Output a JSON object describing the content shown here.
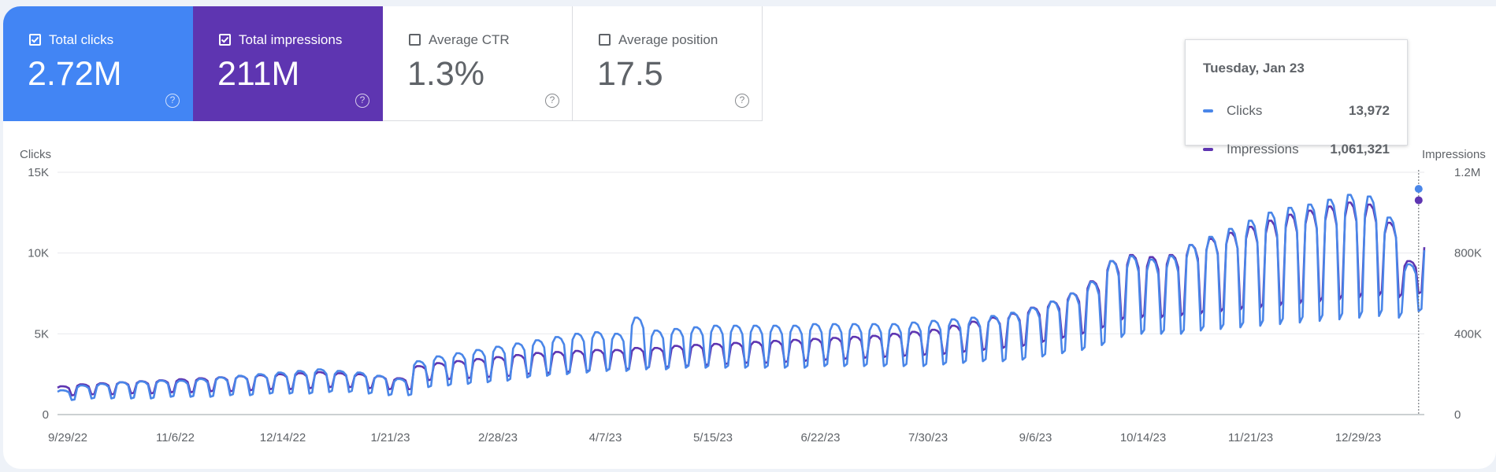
{
  "metrics": [
    {
      "label": "Total clicks",
      "value": "2.72M",
      "checked": true,
      "help": "?"
    },
    {
      "label": "Total impressions",
      "value": "211M",
      "checked": true,
      "help": "?"
    },
    {
      "label": "Average CTR",
      "value": "1.3%",
      "checked": false,
      "help": "?"
    },
    {
      "label": "Average position",
      "value": "17.5",
      "checked": false,
      "help": "?"
    }
  ],
  "colors": {
    "clicks": "#4a86e8",
    "impressions": "#5e35b1",
    "text": "#5f6368"
  },
  "tooltip": {
    "date": "Tuesday, Jan 23",
    "rows": [
      {
        "label": "Clicks",
        "value": "13,972"
      },
      {
        "label": "Impressions",
        "value": "1,061,321"
      }
    ]
  },
  "chart_data": {
    "type": "line",
    "title": "",
    "y_left_label": "Clicks",
    "y_right_label": "Impressions",
    "y_left_ticks": [
      "0",
      "5K",
      "10K",
      "15K"
    ],
    "y_right_ticks": [
      "0",
      "400K",
      "800K",
      "1.2M"
    ],
    "ylim_left": [
      0,
      15000
    ],
    "ylim_right": [
      0,
      1200000
    ],
    "x_ticks": [
      "9/29/22",
      "11/6/22",
      "12/14/22",
      "1/21/23",
      "2/28/23",
      "4/7/23",
      "5/15/23",
      "6/22/23",
      "7/30/23",
      "9/6/23",
      "10/14/23",
      "11/21/23",
      "12/29/23"
    ],
    "x_start": "2022-09-29",
    "x_end": "2024-01-25",
    "grid": true,
    "legend": "none",
    "series": [
      {
        "name": "Clicks",
        "axis": "left",
        "date_start": "2022-09-29",
        "weekly_weekday_peak": [
          1500,
          1800,
          1900,
          2000,
          2050,
          2100,
          2100,
          2200,
          2300,
          2400,
          2500,
          2600,
          2700,
          2800,
          2700,
          2600,
          2400,
          2200,
          3300,
          3600,
          3800,
          4000,
          4200,
          4400,
          4600,
          4800,
          5000,
          5100,
          5000,
          6000,
          5200,
          5300,
          5400,
          5500,
          5500,
          5500,
          5500,
          5500,
          5600,
          5600,
          5600,
          5600,
          5600,
          5700,
          5800,
          5900,
          6000,
          6100,
          6300,
          6600,
          7000,
          7500,
          8200,
          9500,
          9800,
          9600,
          9800,
          10500,
          11000,
          11500,
          12000,
          12500,
          12800,
          13000,
          13300,
          13600,
          13500,
          12200,
          9300,
          11000,
          12500,
          13200,
          13000
        ],
        "weekly_weekend_low": [
          900,
          1000,
          1000,
          1000,
          1000,
          1100,
          1100,
          1100,
          1200,
          1200,
          1300,
          1300,
          1300,
          1400,
          1400,
          1300,
          1200,
          1200,
          1700,
          1800,
          1900,
          2000,
          2100,
          2300,
          2400,
          2500,
          2600,
          2700,
          2700,
          2800,
          2800,
          2900,
          2900,
          2900,
          2900,
          2900,
          2900,
          2900,
          3000,
          3000,
          3000,
          3000,
          3000,
          3000,
          3100,
          3200,
          3300,
          3300,
          3400,
          3600,
          3800,
          4000,
          4300,
          4800,
          5000,
          5000,
          5000,
          5200,
          5300,
          5400,
          5500,
          5600,
          5700,
          5800,
          5900,
          6000,
          6100,
          6000,
          6400,
          5500,
          6500,
          7000,
          7500
        ]
      },
      {
        "name": "Impressions",
        "axis": "right",
        "date_start": "2022-09-29",
        "weekly_weekday_peak": [
          140000,
          150000,
          155000,
          160000,
          165000,
          170000,
          175000,
          180000,
          185000,
          190000,
          195000,
          200000,
          205000,
          210000,
          205000,
          200000,
          190000,
          180000,
          240000,
          255000,
          265000,
          275000,
          285000,
          295000,
          305000,
          310000,
          315000,
          320000,
          320000,
          330000,
          330000,
          340000,
          345000,
          350000,
          355000,
          360000,
          365000,
          370000,
          375000,
          380000,
          385000,
          390000,
          400000,
          410000,
          420000,
          440000,
          460000,
          480000,
          500000,
          530000,
          560000,
          600000,
          660000,
          760000,
          790000,
          780000,
          790000,
          840000,
          870000,
          900000,
          930000,
          960000,
          990000,
          1010000,
          1030000,
          1050000,
          1040000,
          950000,
          760000,
          880000,
          990000,
          1040000,
          1030000
        ],
        "weekly_weekend_low": [
          95000,
          100000,
          100000,
          105000,
          105000,
          110000,
          110000,
          115000,
          115000,
          120000,
          125000,
          125000,
          130000,
          135000,
          135000,
          130000,
          125000,
          125000,
          170000,
          175000,
          180000,
          185000,
          190000,
          200000,
          205000,
          210000,
          215000,
          220000,
          225000,
          230000,
          235000,
          240000,
          245000,
          250000,
          255000,
          255000,
          260000,
          265000,
          270000,
          275000,
          280000,
          285000,
          290000,
          295000,
          300000,
          310000,
          320000,
          330000,
          340000,
          360000,
          380000,
          400000,
          430000,
          470000,
          480000,
          480000,
          490000,
          500000,
          510000,
          520000,
          530000,
          540000,
          550000,
          560000,
          570000,
          580000,
          590000,
          580000,
          600000,
          540000,
          610000,
          650000,
          680000
        ]
      }
    ],
    "highlight": {
      "date": "2024-01-23",
      "clicks": 13972,
      "impressions": 1061321
    }
  }
}
